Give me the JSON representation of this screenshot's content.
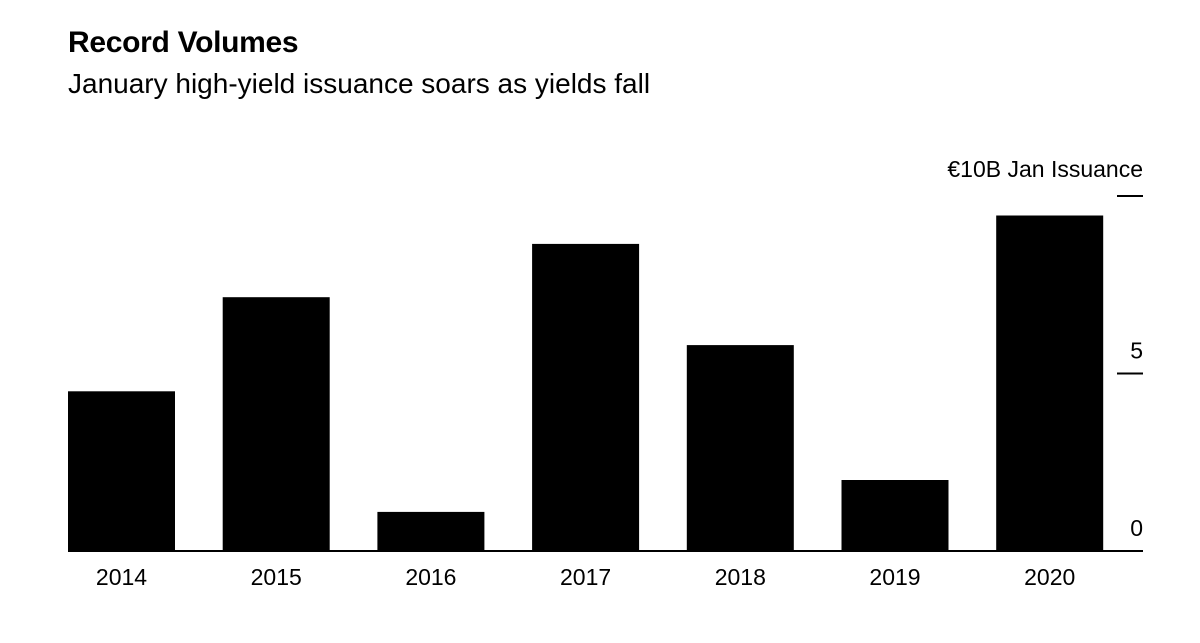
{
  "chart_data": {
    "type": "bar",
    "title": "Record Volumes",
    "subtitle": "January high-yield issuance soars as yields fall",
    "categories": [
      "2014",
      "2015",
      "2016",
      "2017",
      "2018",
      "2019",
      "2020"
    ],
    "values": [
      4.5,
      7.15,
      1.1,
      8.65,
      5.8,
      2.0,
      9.45
    ],
    "unit_label": "€10B Jan Issuance",
    "y_ticks": [
      {
        "value": 0,
        "label": "0"
      },
      {
        "value": 5,
        "label": "5"
      },
      {
        "value": 10,
        "label": ""
      }
    ],
    "ylim": [
      0,
      10
    ],
    "xlabel": "",
    "ylabel": "",
    "grid": false,
    "axis_position": "right",
    "bar_color": "#000000"
  }
}
